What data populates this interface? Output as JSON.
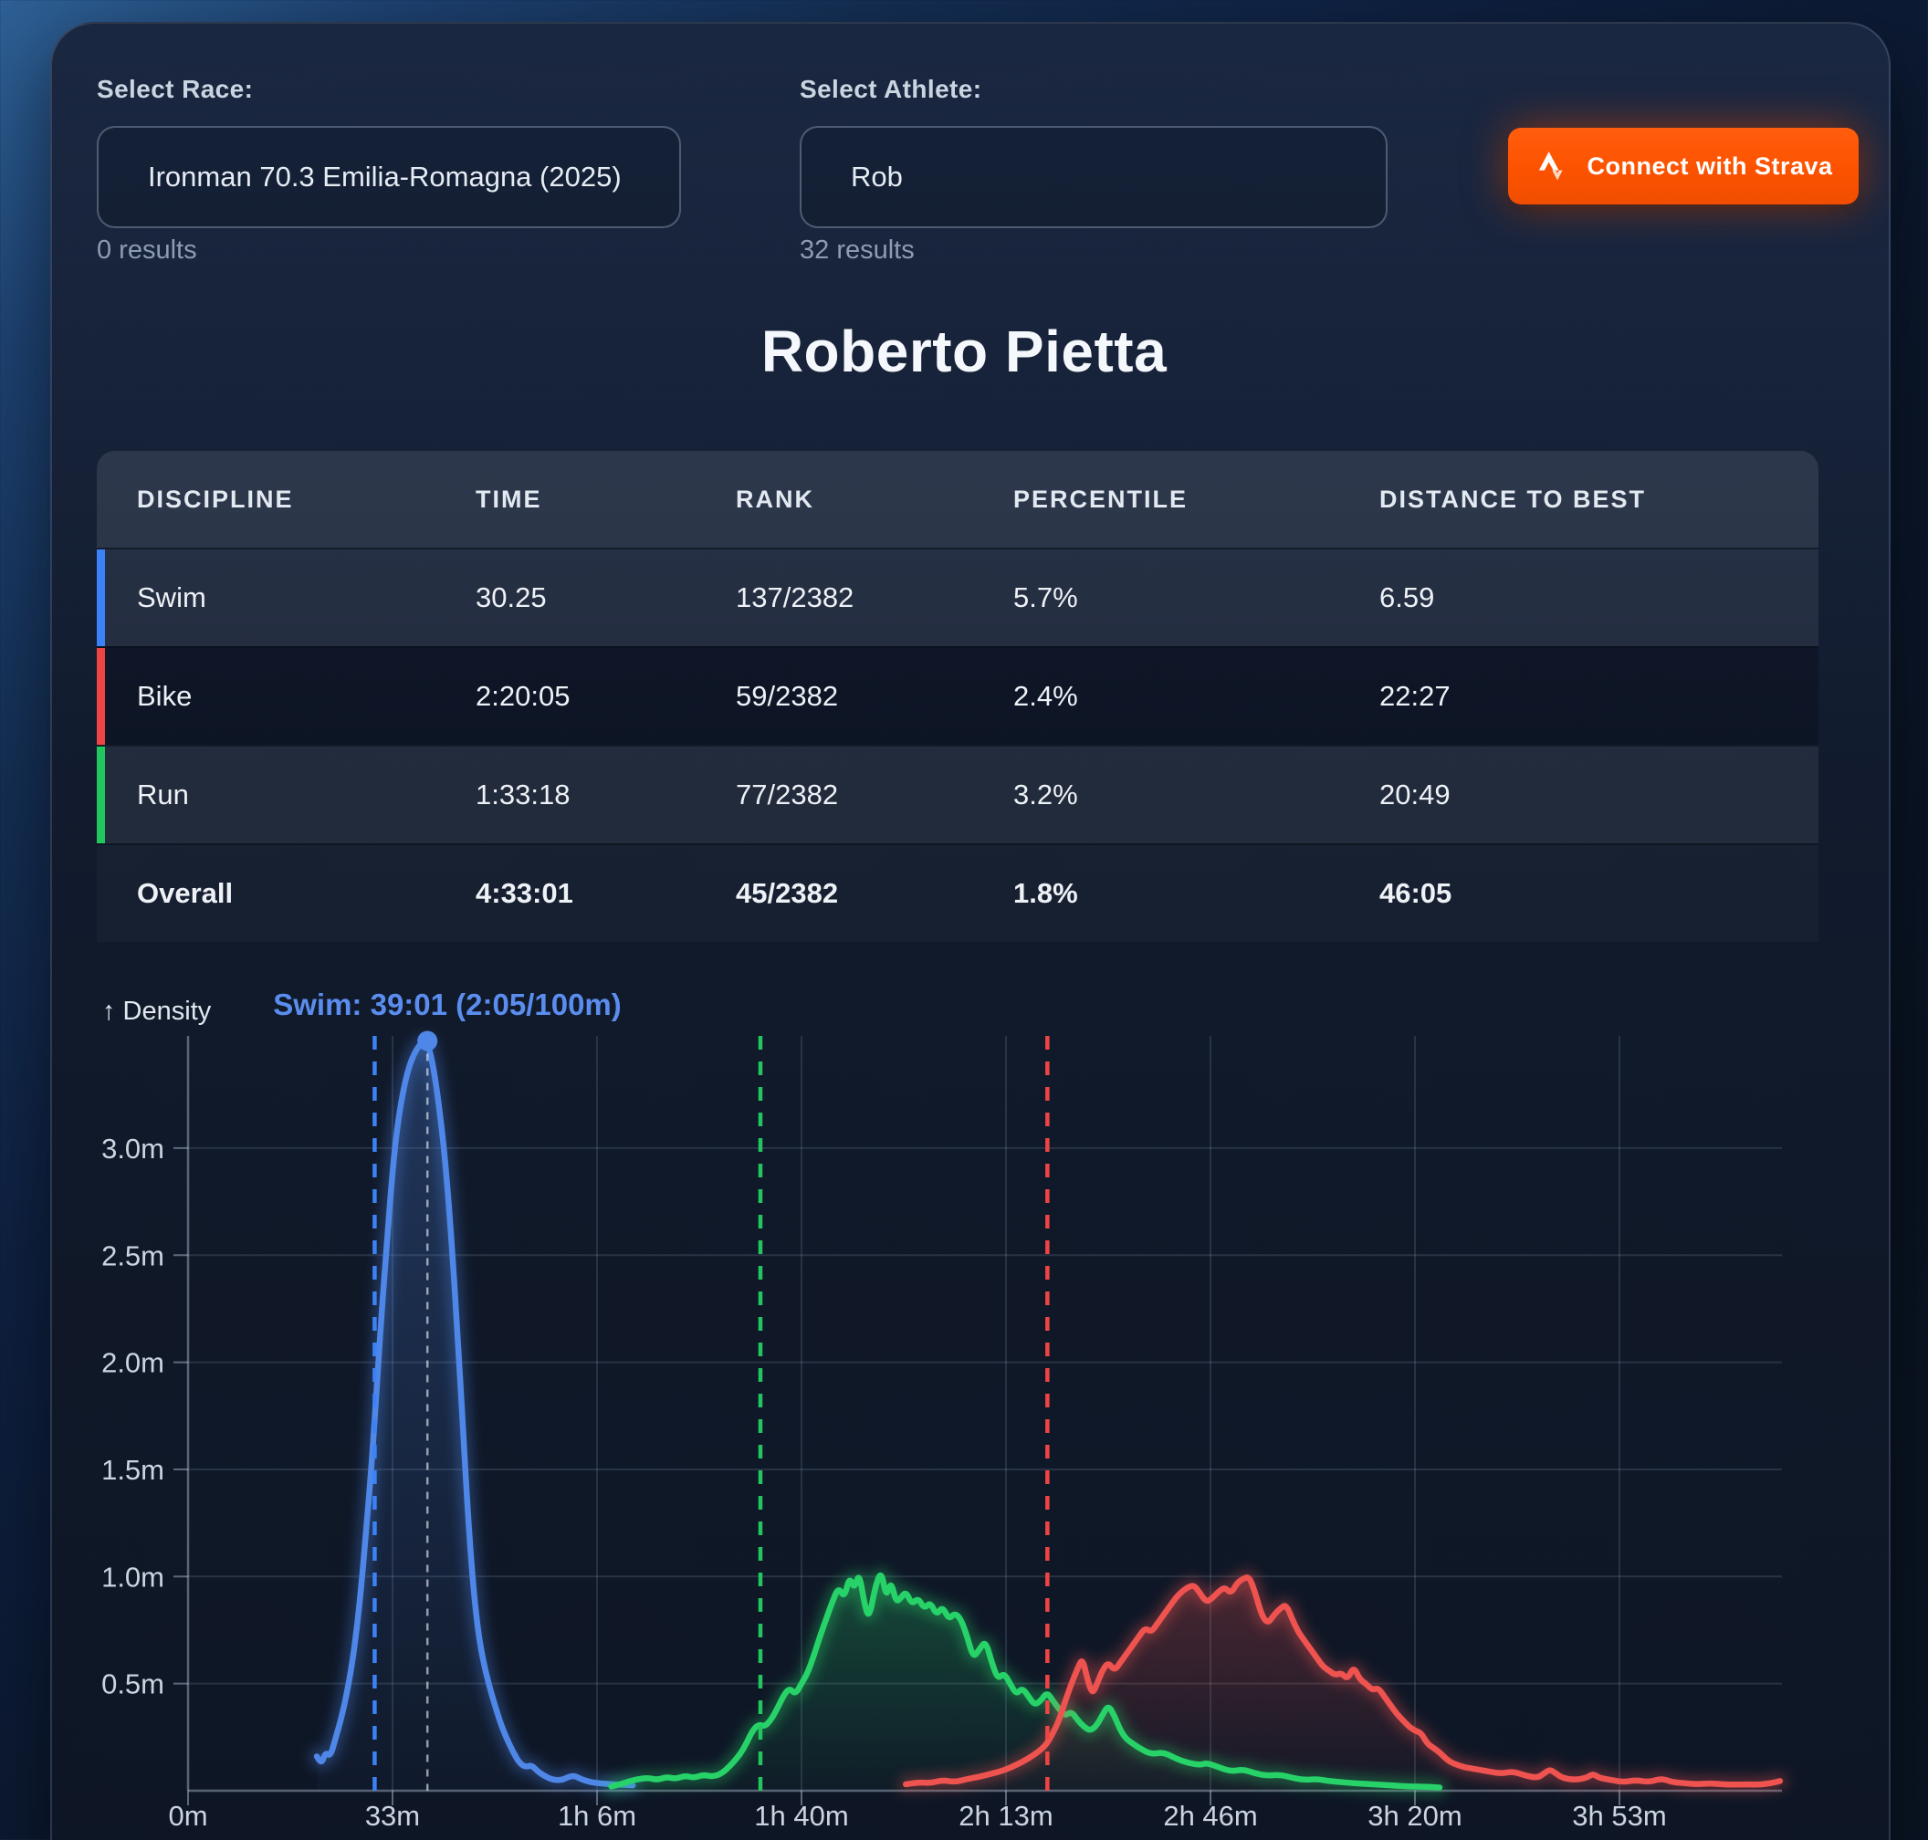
{
  "controls": {
    "race_label": "Select Race:",
    "race_value": "Ironman 70.3 Emilia-Romagna (2025)",
    "race_results": "0 results",
    "athlete_label": "Select Athlete:",
    "athlete_value": "Rob",
    "athlete_results": "32 results",
    "strava_button": "Connect with Strava",
    "strava_color": "#fc5200"
  },
  "athlete_name": "Roberto Pietta",
  "table": {
    "columns": [
      "DISCIPLINE",
      "TIME",
      "RANK",
      "PERCENTILE",
      "DISTANCE TO BEST"
    ],
    "rows": [
      {
        "discipline": "Swim",
        "time": "30.25",
        "rank": "137/2382",
        "percentile": "5.7%",
        "distance_to_best": "6.59",
        "accent": "#3b82f6",
        "shade": "light",
        "bold": false
      },
      {
        "discipline": "Bike",
        "time": "2:20:05",
        "rank": "59/2382",
        "percentile": "2.4%",
        "distance_to_best": "22:27",
        "accent": "#ef4444",
        "shade": "dark",
        "bold": false
      },
      {
        "discipline": "Run",
        "time": "1:33:18",
        "rank": "77/2382",
        "percentile": "3.2%",
        "distance_to_best": "20:49",
        "accent": "#22c55e",
        "shade": "light",
        "bold": false
      },
      {
        "discipline": "Overall",
        "time": "4:33:01",
        "rank": "45/2382",
        "percentile": "1.8%",
        "distance_to_best": "46:05",
        "accent": null,
        "shade": "mid",
        "bold": true
      }
    ]
  },
  "chart_data": {
    "type": "area",
    "ylabel": "↑ Density",
    "grid": true,
    "legend": "none",
    "xlim_minutes": [
      0,
      260
    ],
    "ylim": [
      0,
      3.6
    ],
    "x_ticks": [
      {
        "min": 0,
        "label": "0m"
      },
      {
        "min": 33.33,
        "label": "33m"
      },
      {
        "min": 66.67,
        "label": "1h 6m"
      },
      {
        "min": 100,
        "label": "1h 40m"
      },
      {
        "min": 133.33,
        "label": "2h 13m"
      },
      {
        "min": 166.67,
        "label": "2h 46m"
      },
      {
        "min": 200,
        "label": "3h 20m"
      },
      {
        "min": 233.33,
        "label": "3h 53m"
      }
    ],
    "y_ticks": [
      {
        "v": 0.5,
        "label": "0.5m"
      },
      {
        "v": 1.0,
        "label": "1.0m"
      },
      {
        "v": 1.5,
        "label": "1.5m"
      },
      {
        "v": 2.0,
        "label": "2.0m"
      },
      {
        "v": 2.5,
        "label": "2.5m"
      },
      {
        "v": 3.0,
        "label": "3.0m"
      }
    ],
    "athlete_markers": [
      {
        "series": "Swim",
        "time": "30:25",
        "min": 30.42,
        "color": "#3b82f6"
      },
      {
        "series": "Run",
        "time": "1:33:18",
        "min": 93.3,
        "color": "#22c55e"
      },
      {
        "series": "Bike",
        "time": "2:20:05",
        "min": 140.08,
        "color": "#ef4444"
      }
    ],
    "hover": {
      "label": "Swim: 39:01 (2:05/100m)",
      "min": 39.02,
      "density": 3.5,
      "color": "#5b8def"
    },
    "series": [
      {
        "name": "Swim",
        "color": "#4f87e8",
        "points": [
          [
            21,
            0.16
          ],
          [
            21.7,
            0.12
          ],
          [
            22.4,
            0.18
          ],
          [
            23.2,
            0.16
          ],
          [
            24,
            0.24
          ],
          [
            25,
            0.34
          ],
          [
            26,
            0.47
          ],
          [
            27,
            0.64
          ],
          [
            28,
            0.88
          ],
          [
            29,
            1.2
          ],
          [
            30,
            1.55
          ],
          [
            30.8,
            1.9
          ],
          [
            31.6,
            2.25
          ],
          [
            32.4,
            2.55
          ],
          [
            33.2,
            2.85
          ],
          [
            34,
            3.08
          ],
          [
            35,
            3.26
          ],
          [
            36,
            3.38
          ],
          [
            37,
            3.45
          ],
          [
            38,
            3.49
          ],
          [
            39,
            3.5
          ],
          [
            40,
            3.38
          ],
          [
            41,
            3.18
          ],
          [
            42,
            2.92
          ],
          [
            43,
            2.55
          ],
          [
            44,
            2.1
          ],
          [
            44.8,
            1.7
          ],
          [
            45.6,
            1.3
          ],
          [
            46.4,
            0.98
          ],
          [
            47.2,
            0.76
          ],
          [
            48,
            0.62
          ],
          [
            49,
            0.5
          ],
          [
            50,
            0.4
          ],
          [
            51,
            0.31
          ],
          [
            52,
            0.24
          ],
          [
            53,
            0.18
          ],
          [
            54,
            0.13
          ],
          [
            55,
            0.11
          ],
          [
            56,
            0.12
          ],
          [
            57,
            0.09
          ],
          [
            58,
            0.07
          ],
          [
            59.5,
            0.05
          ],
          [
            61,
            0.05
          ],
          [
            62,
            0.065
          ],
          [
            63,
            0.07
          ],
          [
            64,
            0.055
          ],
          [
            65.5,
            0.04
          ],
          [
            67,
            0.035
          ],
          [
            69,
            0.03
          ],
          [
            71,
            0.028
          ],
          [
            72.5,
            0.025
          ]
        ]
      },
      {
        "name": "Run",
        "color": "#27d268",
        "points": [
          [
            69,
            0.02
          ],
          [
            70.5,
            0.03
          ],
          [
            72,
            0.045
          ],
          [
            73.5,
            0.055
          ],
          [
            75,
            0.06
          ],
          [
            76.5,
            0.05
          ],
          [
            78,
            0.065
          ],
          [
            79.5,
            0.055
          ],
          [
            81,
            0.07
          ],
          [
            82.5,
            0.06
          ],
          [
            84,
            0.075
          ],
          [
            85.5,
            0.065
          ],
          [
            87,
            0.08
          ],
          [
            88.5,
            0.12
          ],
          [
            90,
            0.17
          ],
          [
            91,
            0.22
          ],
          [
            92,
            0.28
          ],
          [
            93,
            0.31
          ],
          [
            94,
            0.3
          ],
          [
            95,
            0.33
          ],
          [
            96,
            0.38
          ],
          [
            97,
            0.44
          ],
          [
            98,
            0.48
          ],
          [
            99,
            0.45
          ],
          [
            100,
            0.5
          ],
          [
            101,
            0.55
          ],
          [
            102,
            0.63
          ],
          [
            103,
            0.72
          ],
          [
            104,
            0.8
          ],
          [
            105,
            0.88
          ],
          [
            106,
            0.95
          ],
          [
            107,
            0.9
          ],
          [
            107.8,
            1.0
          ],
          [
            108.6,
            0.94
          ],
          [
            109.4,
            1.02
          ],
          [
            110.2,
            0.88
          ],
          [
            111,
            0.8
          ],
          [
            112,
            0.95
          ],
          [
            113,
            1.03
          ],
          [
            113.8,
            0.9
          ],
          [
            114.6,
            0.98
          ],
          [
            115.4,
            0.88
          ],
          [
            116.2,
            0.9
          ],
          [
            117,
            0.93
          ],
          [
            118,
            0.87
          ],
          [
            119,
            0.9
          ],
          [
            120,
            0.85
          ],
          [
            121,
            0.88
          ],
          [
            122,
            0.82
          ],
          [
            123,
            0.86
          ],
          [
            124,
            0.8
          ],
          [
            125,
            0.83
          ],
          [
            126,
            0.8
          ],
          [
            127,
            0.72
          ],
          [
            128,
            0.62
          ],
          [
            129,
            0.66
          ],
          [
            130,
            0.7
          ],
          [
            131,
            0.6
          ],
          [
            132,
            0.52
          ],
          [
            133,
            0.55
          ],
          [
            134,
            0.5
          ],
          [
            135,
            0.45
          ],
          [
            136,
            0.48
          ],
          [
            137,
            0.44
          ],
          [
            138,
            0.4
          ],
          [
            139,
            0.42
          ],
          [
            140,
            0.46
          ],
          [
            141,
            0.42
          ],
          [
            142,
            0.38
          ],
          [
            143,
            0.35
          ],
          [
            144,
            0.37
          ],
          [
            145,
            0.33
          ],
          [
            146,
            0.3
          ],
          [
            147,
            0.28
          ],
          [
            148,
            0.3
          ],
          [
            149,
            0.35
          ],
          [
            150,
            0.4
          ],
          [
            151,
            0.35
          ],
          [
            152,
            0.28
          ],
          [
            153,
            0.24
          ],
          [
            154,
            0.22
          ],
          [
            155,
            0.2
          ],
          [
            157,
            0.17
          ],
          [
            159,
            0.18
          ],
          [
            161,
            0.15
          ],
          [
            163,
            0.13
          ],
          [
            165,
            0.12
          ],
          [
            166,
            0.13
          ],
          [
            168,
            0.11
          ],
          [
            170,
            0.09
          ],
          [
            172,
            0.1
          ],
          [
            174,
            0.08
          ],
          [
            176,
            0.07
          ],
          [
            178,
            0.075
          ],
          [
            180,
            0.06
          ],
          [
            182,
            0.05
          ],
          [
            184,
            0.055
          ],
          [
            186,
            0.045
          ],
          [
            188,
            0.04
          ],
          [
            190,
            0.035
          ],
          [
            193,
            0.03
          ],
          [
            196,
            0.025
          ],
          [
            199,
            0.02
          ],
          [
            202,
            0.018
          ],
          [
            204,
            0.015
          ]
        ]
      },
      {
        "name": "Bike",
        "color": "#ef5350",
        "points": [
          [
            117,
            0.03
          ],
          [
            119,
            0.04
          ],
          [
            121,
            0.035
          ],
          [
            123,
            0.05
          ],
          [
            125,
            0.04
          ],
          [
            127,
            0.055
          ],
          [
            129,
            0.065
          ],
          [
            131,
            0.08
          ],
          [
            133,
            0.095
          ],
          [
            135,
            0.12
          ],
          [
            137,
            0.15
          ],
          [
            139,
            0.19
          ],
          [
            140,
            0.22
          ],
          [
            141,
            0.27
          ],
          [
            142,
            0.33
          ],
          [
            143,
            0.42
          ],
          [
            144,
            0.5
          ],
          [
            145,
            0.57
          ],
          [
            145.8,
            0.62
          ],
          [
            146.6,
            0.52
          ],
          [
            147.4,
            0.45
          ],
          [
            148.2,
            0.5
          ],
          [
            149,
            0.56
          ],
          [
            150,
            0.6
          ],
          [
            151,
            0.56
          ],
          [
            152,
            0.6
          ],
          [
            153,
            0.64
          ],
          [
            154,
            0.68
          ],
          [
            155,
            0.72
          ],
          [
            156,
            0.76
          ],
          [
            157,
            0.74
          ],
          [
            158,
            0.78
          ],
          [
            159,
            0.82
          ],
          [
            160,
            0.86
          ],
          [
            161,
            0.9
          ],
          [
            162,
            0.93
          ],
          [
            163,
            0.95
          ],
          [
            164,
            0.96
          ],
          [
            165,
            0.92
          ],
          [
            166,
            0.88
          ],
          [
            167,
            0.9
          ],
          [
            168,
            0.93
          ],
          [
            169,
            0.95
          ],
          [
            170,
            0.92
          ],
          [
            171,
            0.97
          ],
          [
            172,
            0.99
          ],
          [
            173,
            1.0
          ],
          [
            174,
            0.92
          ],
          [
            175,
            0.82
          ],
          [
            176,
            0.78
          ],
          [
            177,
            0.82
          ],
          [
            178,
            0.85
          ],
          [
            179,
            0.87
          ],
          [
            180,
            0.8
          ],
          [
            181,
            0.74
          ],
          [
            182,
            0.7
          ],
          [
            183,
            0.66
          ],
          [
            184,
            0.62
          ],
          [
            185,
            0.58
          ],
          [
            186,
            0.56
          ],
          [
            187,
            0.54
          ],
          [
            188,
            0.55
          ],
          [
            189,
            0.52
          ],
          [
            190,
            0.58
          ],
          [
            191,
            0.52
          ],
          [
            192,
            0.5
          ],
          [
            193,
            0.47
          ],
          [
            194,
            0.48
          ],
          [
            195,
            0.44
          ],
          [
            196,
            0.4
          ],
          [
            197,
            0.36
          ],
          [
            198,
            0.33
          ],
          [
            199,
            0.3
          ],
          [
            200,
            0.28
          ],
          [
            201,
            0.27
          ],
          [
            202,
            0.22
          ],
          [
            203,
            0.2
          ],
          [
            204,
            0.18
          ],
          [
            205,
            0.15
          ],
          [
            206,
            0.13
          ],
          [
            207,
            0.12
          ],
          [
            208,
            0.11
          ],
          [
            210,
            0.1
          ],
          [
            212,
            0.09
          ],
          [
            214,
            0.08
          ],
          [
            216,
            0.09
          ],
          [
            218,
            0.07
          ],
          [
            220,
            0.06
          ],
          [
            221,
            0.08
          ],
          [
            222,
            0.1
          ],
          [
            223,
            0.08
          ],
          [
            224,
            0.06
          ],
          [
            226,
            0.05
          ],
          [
            228,
            0.06
          ],
          [
            229,
            0.08
          ],
          [
            230,
            0.06
          ],
          [
            232,
            0.05
          ],
          [
            234,
            0.04
          ],
          [
            236,
            0.05
          ],
          [
            238,
            0.04
          ],
          [
            240,
            0.055
          ],
          [
            241,
            0.05
          ],
          [
            242,
            0.04
          ],
          [
            244,
            0.035
          ],
          [
            246,
            0.03
          ],
          [
            248,
            0.035
          ],
          [
            250,
            0.03
          ],
          [
            252,
            0.028
          ],
          [
            254,
            0.03
          ],
          [
            256,
            0.028
          ],
          [
            258,
            0.035
          ],
          [
            259.5,
            0.045
          ]
        ]
      }
    ]
  }
}
